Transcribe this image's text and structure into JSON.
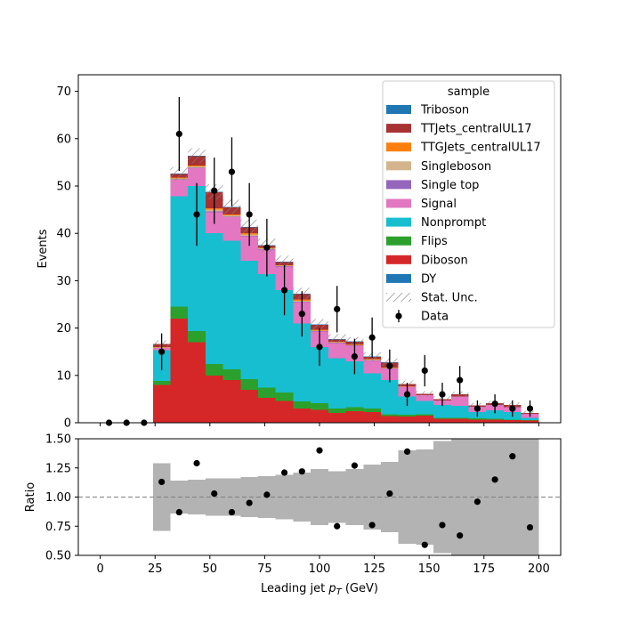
{
  "chart_data": [
    {
      "type": "bar",
      "stacked": true,
      "ylabel": "Events",
      "ylim": [
        0,
        73.5
      ],
      "xlim": [
        -10,
        210
      ],
      "yticks": [
        0,
        10,
        20,
        30,
        40,
        50,
        60,
        70
      ],
      "bin_edges": [
        0,
        8,
        16,
        24,
        32,
        40,
        48,
        56,
        64,
        72,
        80,
        88,
        96,
        104,
        112,
        120,
        128,
        136,
        144,
        152,
        160,
        168,
        176,
        184,
        192,
        200
      ],
      "legend": {
        "title": "sample",
        "placement": "top-right",
        "entries": [
          {
            "label": "Triboson",
            "color": "#1f77b4",
            "kind": "patch"
          },
          {
            "label": "TTJets_centralUL17",
            "color": "#a83232",
            "kind": "patch"
          },
          {
            "label": "TTGJets_centralUL17",
            "color": "#ff7f0e",
            "kind": "patch"
          },
          {
            "label": "Singleboson",
            "color": "#d4b48c",
            "kind": "patch"
          },
          {
            "label": "Single top",
            "color": "#9467bd",
            "kind": "patch"
          },
          {
            "label": "Signal",
            "color": "#e377c2",
            "kind": "patch"
          },
          {
            "label": "Nonprompt",
            "color": "#17becf",
            "kind": "patch"
          },
          {
            "label": "Flips",
            "color": "#2ca02c",
            "kind": "patch"
          },
          {
            "label": "Diboson",
            "color": "#d62728",
            "kind": "patch"
          },
          {
            "label": "DY",
            "color": "#1f77b4",
            "kind": "patch"
          },
          {
            "label": "Stat. Unc.",
            "color": "#808080",
            "kind": "hatch"
          },
          {
            "label": "Data",
            "color": "#000000",
            "kind": "errorbar"
          }
        ]
      },
      "series": [
        {
          "name": "Diboson",
          "color": "#d62728",
          "values": [
            0,
            0,
            0,
            8,
            22,
            17,
            10,
            9,
            7,
            5.3,
            4.6,
            3,
            2.7,
            2.1,
            2.4,
            2.3,
            1.4,
            1.3,
            1.5,
            0.8,
            0.8,
            0.7,
            0.7,
            0.6,
            0.5
          ]
        },
        {
          "name": "Flips",
          "color": "#2ca02c",
          "values": [
            0,
            0,
            0,
            0.8,
            2.5,
            2.4,
            2.4,
            2.3,
            2.2,
            2.1,
            1.8,
            1.5,
            1.4,
            0.9,
            0.9,
            0.7,
            0.4,
            0.4,
            0.3,
            0.2,
            0.2,
            0.2,
            0.1,
            0.1,
            0.1
          ]
        },
        {
          "name": "Nonprompt",
          "color": "#17becf",
          "values": [
            0,
            0,
            0,
            6.5,
            23.3,
            30.6,
            27.6,
            27.1,
            25,
            24,
            21.6,
            16.5,
            11.9,
            10.6,
            9.7,
            7.4,
            7.2,
            3.8,
            2.8,
            2.8,
            2.6,
            1.4,
            1.8,
            1.6,
            0.4
          ]
        },
        {
          "name": "Signal",
          "color": "#e377c2",
          "values": [
            0,
            0,
            0,
            0.5,
            3.5,
            3.8,
            4.5,
            5,
            5.2,
            5.2,
            5,
            4.5,
            3.3,
            3.2,
            3.3,
            2.7,
            2.4,
            2.1,
            1.2,
            0.9,
            1.9,
            1.1,
            1.2,
            1.0,
            0.9
          ]
        },
        {
          "name": "Single top",
          "color": "#9467bd",
          "values": [
            0,
            0,
            0,
            0,
            0.1,
            0.1,
            0.1,
            0.1,
            0.1,
            0.1,
            0.1,
            0.1,
            0.1,
            0.1,
            0.1,
            0.1,
            0.1,
            0,
            0,
            0,
            0,
            0,
            0,
            0,
            0
          ]
        },
        {
          "name": "Singleboson",
          "color": "#d4b48c",
          "values": [
            0,
            0,
            0,
            0.1,
            0.2,
            0.2,
            0.4,
            0.3,
            0.3,
            0.1,
            0.1,
            0.2,
            0.1,
            0.1,
            0,
            0.1,
            0.1,
            0,
            0,
            0,
            0,
            0,
            0,
            0,
            0
          ]
        },
        {
          "name": "TTGJets_centralUL17",
          "color": "#ff7f0e",
          "values": [
            0,
            0,
            0,
            0.1,
            0.2,
            0.2,
            0.3,
            0.2,
            0.2,
            0.1,
            0.1,
            0.2,
            0.1,
            0.1,
            0.1,
            0.1,
            0.1,
            0.1,
            0,
            0,
            0,
            0,
            0,
            0,
            0
          ]
        },
        {
          "name": "TTJets_centralUL17",
          "color": "#a83232",
          "values": [
            0,
            0,
            0,
            0.6,
            0.7,
            2,
            3.4,
            1.5,
            1.3,
            0.5,
            0.6,
            1.2,
            1.1,
            0.5,
            0.6,
            0.5,
            1.0,
            0.5,
            0.3,
            0.3,
            0.5,
            0.3,
            0.3,
            0.5,
            0.2
          ]
        },
        {
          "name": "Triboson",
          "color": "#1f77b4",
          "values": [
            0,
            0,
            0,
            0,
            0.1,
            0.1,
            0.1,
            0.1,
            0.1,
            0.1,
            0.1,
            0.1,
            0.1,
            0.1,
            0.1,
            0.1,
            0.1,
            0,
            0,
            0,
            0,
            0,
            0,
            0,
            0
          ]
        },
        {
          "name": "DY",
          "color": "#1f77b4",
          "values": [
            0,
            0,
            0,
            0,
            0,
            0,
            0,
            0,
            0,
            0,
            0,
            0,
            0,
            0,
            0,
            0,
            0,
            0,
            0,
            0,
            0,
            0,
            0,
            0,
            0
          ]
        }
      ],
      "stat_unc": [
        0,
        0,
        0,
        0.8,
        1.4,
        1.6,
        1.6,
        1.5,
        1.5,
        1.4,
        1.3,
        1.2,
        1.1,
        1.0,
        0.9,
        0.9,
        0.8,
        0.7,
        0.6,
        0.6,
        0.6,
        0.5,
        0.5,
        0.5,
        0.4
      ],
      "data": {
        "name": "Data",
        "x": [
          4,
          12,
          20,
          28,
          36,
          44,
          52,
          60,
          68,
          76,
          84,
          92,
          100,
          108,
          116,
          124,
          132,
          140,
          148,
          156,
          164,
          172,
          180,
          188,
          196
        ],
        "y": [
          0,
          0,
          0,
          15,
          61,
          44,
          49,
          53,
          44,
          37,
          28,
          23,
          16,
          24,
          14,
          18,
          12,
          6,
          11,
          6,
          9,
          3,
          4,
          3,
          3
        ]
      }
    },
    {
      "type": "scatter",
      "xlabel": "Leading jet  $p_T$ (GeV)",
      "ylabel": "Ratio",
      "ylim": [
        0.5,
        1.5
      ],
      "xlim": [
        -10,
        210
      ],
      "xticks": [
        0,
        25,
        50,
        75,
        100,
        125,
        150,
        175,
        200
      ],
      "yticks": [
        "0.50",
        "0.75",
        "1.00",
        "1.25",
        "1.50"
      ],
      "reference_line": 1.0,
      "band_half_width": [
        0,
        0,
        0,
        0.29,
        0.14,
        0.15,
        0.16,
        0.16,
        0.17,
        0.18,
        0.19,
        0.21,
        0.24,
        0.22,
        0.24,
        0.28,
        0.3,
        0.4,
        0.41,
        0.48,
        0.54,
        0.6,
        0.62,
        0.66,
        0.85
      ],
      "x": [
        28,
        36,
        44,
        52,
        60,
        68,
        76,
        84,
        92,
        100,
        108,
        116,
        124,
        132,
        140,
        148,
        156,
        164,
        172,
        180,
        188,
        196
      ],
      "y": [
        1.13,
        0.87,
        1.29,
        1.03,
        0.87,
        0.95,
        1.02,
        1.21,
        1.22,
        1.4,
        0.75,
        1.27,
        0.76,
        1.03,
        1.39,
        0.59,
        0.76,
        0.67,
        0.96,
        1.15,
        1.35,
        0.74
      ]
    }
  ]
}
